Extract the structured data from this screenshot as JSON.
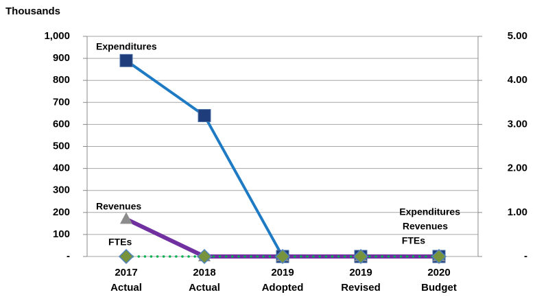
{
  "chart_data": {
    "type": "line",
    "y_axis_label": "Thousands",
    "categories": [
      "2017 Actual",
      "2018 Actual",
      "2019 Adopted",
      "2019 Revised",
      "2020 Budget"
    ],
    "series": [
      {
        "name": "Expenditures",
        "color": "#1f7ac4",
        "marker_color": "#1f3d7a",
        "values": [
          890,
          640,
          0,
          0,
          0
        ]
      },
      {
        "name": "Revenues",
        "color": "#7030a0",
        "marker_color": "#8c8c8c",
        "values": [
          170,
          0,
          0,
          0,
          0
        ]
      },
      {
        "name": "FTEs",
        "color": "#00b050",
        "marker_color": "#77933c",
        "axis": "y2",
        "values": [
          0,
          0,
          0,
          0,
          0
        ]
      }
    ],
    "annotations": [
      "Expenditures",
      "Revenues",
      "FTEs",
      "Expenditures",
      "Revenues",
      "FTEs"
    ],
    "ylim": [
      0,
      1000
    ],
    "yticks": [
      {
        "value": 0,
        "label": "-"
      },
      100,
      200,
      300,
      400,
      500,
      600,
      700,
      800,
      900,
      {
        "value": 1000,
        "label": "1,000"
      }
    ],
    "y2lim": [
      0,
      5
    ],
    "y2ticks": [
      {
        "value": 0,
        "label": "-"
      },
      {
        "value": 1,
        "label": "1.00"
      },
      {
        "value": 2,
        "label": "2.00"
      },
      {
        "value": 3,
        "label": "3.00"
      },
      {
        "value": 4,
        "label": "4.00"
      },
      {
        "value": 5,
        "label": "5.00"
      }
    ],
    "grid": true
  }
}
